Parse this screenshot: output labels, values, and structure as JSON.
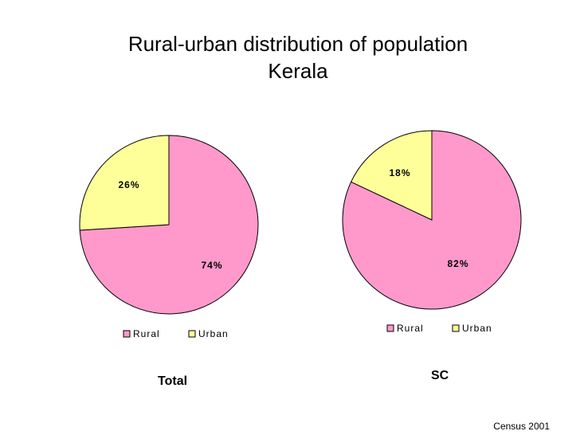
{
  "title_line1": "Rural-urban distribution of population",
  "title_line2": "Kerala",
  "source": "Census 2001",
  "colors": {
    "rural": "#ff99cc",
    "urban": "#ffff99",
    "stroke": "#000000"
  },
  "chart_data": [
    {
      "type": "pie",
      "name": "Total",
      "categories": [
        "Rural",
        "Urban"
      ],
      "values": [
        74,
        26
      ],
      "labels": [
        "74%",
        "26%"
      ],
      "legend": [
        "Rural",
        "Urban"
      ],
      "legend_placement": "bottom"
    },
    {
      "type": "pie",
      "name": "SC",
      "categories": [
        "Rural",
        "Urban"
      ],
      "values": [
        82,
        18
      ],
      "labels": [
        "82%",
        "18%"
      ],
      "legend": [
        "Rural",
        "Urban"
      ],
      "legend_placement": "bottom"
    }
  ]
}
